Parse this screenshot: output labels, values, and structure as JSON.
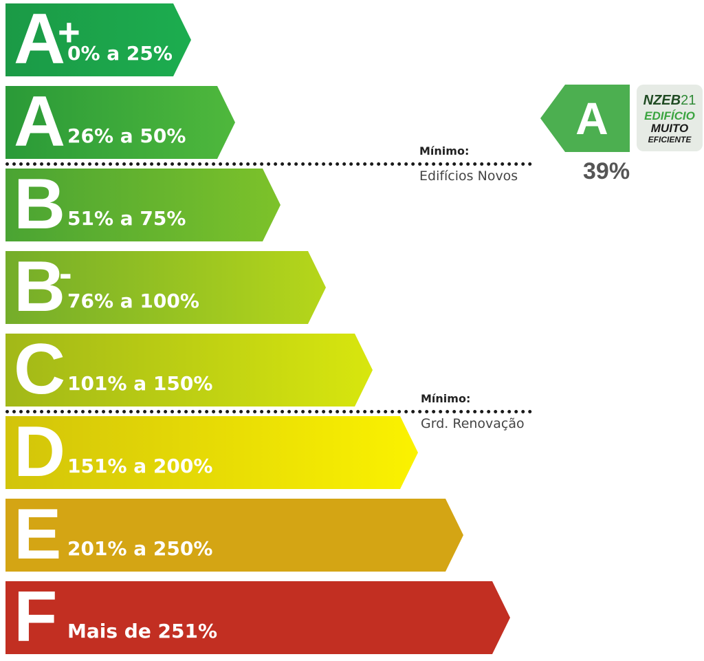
{
  "classes": [
    {
      "letter": "A",
      "modifier": "+",
      "range": "0% a 25%",
      "color_start": "#1b9a46",
      "color_end": "#1cad4f"
    },
    {
      "letter": "A",
      "modifier": "",
      "range": "26% a 50%",
      "color_start": "#2a9a38",
      "color_end": "#4fb83c"
    },
    {
      "letter": "B",
      "modifier": "",
      "range": "51% a 75%",
      "color_start": "#4aa433",
      "color_end": "#7dc22a"
    },
    {
      "letter": "B",
      "modifier": "-",
      "range": "76% a 100%",
      "color_start": "#74ad2a",
      "color_end": "#b6d61a"
    },
    {
      "letter": "C",
      "modifier": "",
      "range": "101% a 150%",
      "color_start": "#a2b818",
      "color_end": "#d8e60e"
    },
    {
      "letter": "D",
      "modifier": "",
      "range": "151% a 200%",
      "color_start": "#d2c40a",
      "color_end": "#fbf200"
    },
    {
      "letter": "E",
      "modifier": "",
      "range": "201% a 250%",
      "color_start": "#d4a514",
      "color_end": "#d4a514"
    },
    {
      "letter": "F",
      "modifier": "",
      "range": "Mais de 251%",
      "color_start": "#c22f22",
      "color_end": "#c22f22"
    }
  ],
  "minimums": [
    {
      "label": "Mínimo:",
      "sub": "Edifícios Novos"
    },
    {
      "label": "Mínimo:",
      "sub": "Grd. Renovação"
    }
  ],
  "result": {
    "letter": "A",
    "percent": "39%",
    "color": "#4caf50"
  },
  "badge": {
    "line1": "NZEB",
    "line1_num": "21",
    "line2": "EDIFÍCIO",
    "line3": "MUITO",
    "line4": "EFICIENTE"
  }
}
